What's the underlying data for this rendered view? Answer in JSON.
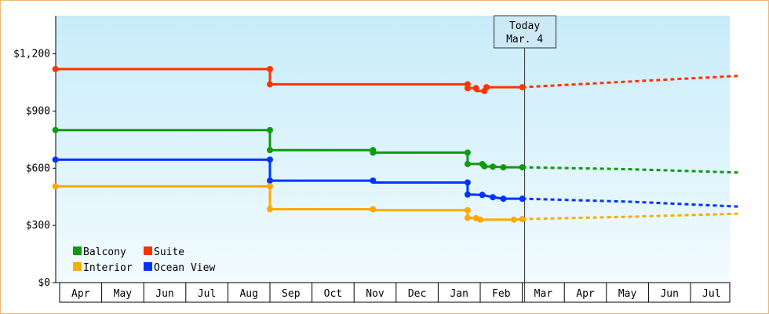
{
  "chart_data": {
    "type": "line",
    "y_axis": {
      "min": 0,
      "max": 1400,
      "ticks": [
        0,
        300,
        600,
        900,
        1200
      ],
      "tick_labels": [
        "$0",
        "$300",
        "$600",
        "$900",
        "$1,200"
      ]
    },
    "x_axis": {
      "months": [
        "Apr",
        "May",
        "Jun",
        "Jul",
        "Aug",
        "Sep",
        "Oct",
        "Nov",
        "Dec",
        "Jan",
        "Feb",
        "Mar",
        "Apr",
        "May",
        "Jun",
        "Jul"
      ]
    },
    "today": {
      "line1": "Today",
      "line2": "Mar. 4",
      "x": 11.0
    },
    "legend": [
      {
        "name": "Balcony",
        "color": "#119911"
      },
      {
        "name": "Suite",
        "color": "#ff3300"
      },
      {
        "name": "Interior",
        "color": "#ffaa00"
      },
      {
        "name": "Ocean View",
        "color": "#0033ff"
      }
    ],
    "series": [
      {
        "name": "Suite",
        "color": "#ff3300",
        "points": [
          [
            -0.1,
            1120
          ],
          [
            5.0,
            1120
          ],
          [
            5.0,
            1040
          ],
          [
            9.7,
            1040
          ],
          [
            9.7,
            1020
          ],
          [
            9.85,
            1020
          ],
          [
            9.9,
            1005
          ],
          [
            10.1,
            1005
          ],
          [
            10.15,
            1025
          ],
          [
            11.0,
            1025
          ]
        ],
        "forecast": [
          [
            11.0,
            1025
          ],
          [
            14.0,
            1060
          ],
          [
            16.2,
            1085
          ]
        ]
      },
      {
        "name": "Balcony",
        "color": "#119911",
        "points": [
          [
            -0.1,
            800
          ],
          [
            5.0,
            800
          ],
          [
            5.0,
            695
          ],
          [
            7.45,
            695
          ],
          [
            7.45,
            682
          ],
          [
            9.7,
            682
          ],
          [
            9.7,
            622
          ],
          [
            10.0,
            622
          ],
          [
            10.05,
            610
          ],
          [
            10.3,
            608
          ],
          [
            10.55,
            605
          ],
          [
            11.0,
            605
          ]
        ],
        "forecast": [
          [
            11.0,
            605
          ],
          [
            13.5,
            595
          ],
          [
            16.2,
            577
          ]
        ]
      },
      {
        "name": "Ocean View",
        "color": "#0033ff",
        "points": [
          [
            -0.1,
            645
          ],
          [
            5.0,
            645
          ],
          [
            5.0,
            535
          ],
          [
            7.45,
            535
          ],
          [
            7.45,
            525
          ],
          [
            9.7,
            525
          ],
          [
            9.7,
            462
          ],
          [
            10.05,
            460
          ],
          [
            10.3,
            448
          ],
          [
            10.55,
            440
          ],
          [
            11.0,
            440
          ]
        ],
        "forecast": [
          [
            11.0,
            440
          ],
          [
            13.5,
            425
          ],
          [
            16.2,
            398
          ]
        ]
      },
      {
        "name": "Interior",
        "color": "#ffaa00",
        "points": [
          [
            -0.1,
            505
          ],
          [
            5.0,
            505
          ],
          [
            5.0,
            385
          ],
          [
            7.45,
            385
          ],
          [
            7.45,
            380
          ],
          [
            9.7,
            380
          ],
          [
            9.7,
            340
          ],
          [
            9.9,
            338
          ],
          [
            10.0,
            330
          ],
          [
            10.8,
            330
          ],
          [
            11.0,
            333
          ]
        ],
        "forecast": [
          [
            11.0,
            333
          ],
          [
            13.5,
            345
          ],
          [
            16.2,
            362
          ]
        ]
      }
    ],
    "markers": {
      "Suite": [
        [
          -0.1,
          1120
        ],
        [
          5.0,
          1120
        ],
        [
          5.0,
          1040
        ],
        [
          9.7,
          1040
        ],
        [
          9.7,
          1020
        ],
        [
          9.9,
          1020
        ],
        [
          10.1,
          1005
        ],
        [
          10.15,
          1025
        ],
        [
          11.0,
          1025
        ]
      ],
      "Balcony": [
        [
          -0.1,
          800
        ],
        [
          5.0,
          800
        ],
        [
          5.0,
          695
        ],
        [
          7.45,
          695
        ],
        [
          7.45,
          682
        ],
        [
          9.7,
          682
        ],
        [
          9.7,
          622
        ],
        [
          10.05,
          622
        ],
        [
          10.1,
          610
        ],
        [
          10.3,
          608
        ],
        [
          10.55,
          605
        ],
        [
          11.0,
          605
        ]
      ],
      "Ocean View": [
        [
          -0.1,
          645
        ],
        [
          5.0,
          645
        ],
        [
          5.0,
          535
        ],
        [
          7.45,
          535
        ],
        [
          9.7,
          525
        ],
        [
          9.7,
          462
        ],
        [
          10.05,
          460
        ],
        [
          10.3,
          448
        ],
        [
          10.55,
          440
        ],
        [
          11.0,
          440
        ]
      ],
      "Interior": [
        [
          -0.1,
          505
        ],
        [
          5.0,
          505
        ],
        [
          5.0,
          385
        ],
        [
          7.45,
          385
        ],
        [
          9.7,
          380
        ],
        [
          9.7,
          340
        ],
        [
          9.9,
          338
        ],
        [
          10.0,
          330
        ],
        [
          10.8,
          330
        ],
        [
          11.0,
          333
        ]
      ]
    }
  }
}
